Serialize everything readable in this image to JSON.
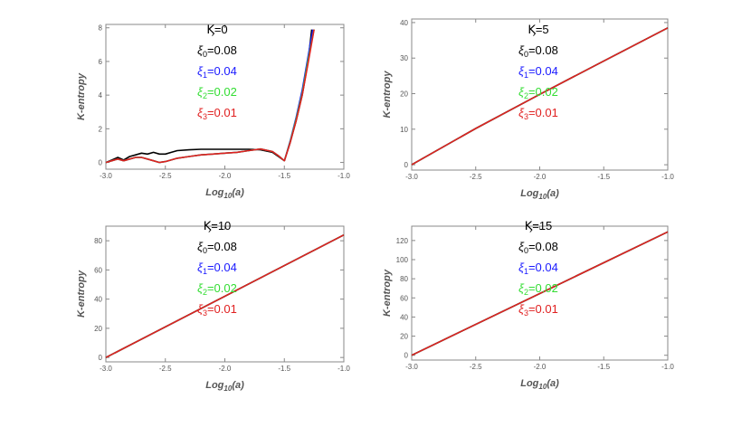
{
  "chart_data": [
    {
      "type": "line",
      "kappa_label": "Ϗ=0",
      "xlabel": "Log10(a)",
      "ylabel": "K-entropy",
      "xlim": [
        -3.0,
        -1.0
      ],
      "ylim": [
        -0.4,
        8.2
      ],
      "xticks": [
        -3.0,
        -2.5,
        -2.0,
        -1.5,
        -1.0
      ],
      "xtick_labels": [
        "-3.0",
        "-2.5",
        "-2.0",
        "-1.5",
        "-1.0"
      ],
      "yticks": [
        0,
        2,
        4,
        6,
        8
      ],
      "ytick_labels": [
        "0",
        "2",
        "4",
        "6",
        "8"
      ],
      "annotations": [
        {
          "sym": "ξ",
          "sub": "0",
          "val": "=0.08",
          "color": "#000000"
        },
        {
          "sym": "ξ",
          "sub": "1",
          "val": "=0.04",
          "color": "#1a1aff"
        },
        {
          "sym": "ξ",
          "sub": "2",
          "val": "=0.02",
          "color": "#33dd33"
        },
        {
          "sym": "ξ",
          "sub": "3",
          "val": "=0.01",
          "color": "#e02020"
        }
      ],
      "series": [
        {
          "name": "ξ0=0.08",
          "color": "#000000",
          "x": [
            -3.0,
            -2.95,
            -2.9,
            -2.85,
            -2.8,
            -2.75,
            -2.7,
            -2.65,
            -2.6,
            -2.55,
            -2.5,
            -2.45,
            -2.4,
            -2.3,
            -2.2,
            -2.1,
            -2.0,
            -1.9,
            -1.8,
            -1.7,
            -1.6,
            -1.55,
            -1.5,
            -1.45,
            -1.4,
            -1.35,
            -1.3,
            -1.27
          ],
          "y": [
            0.0,
            0.15,
            0.3,
            0.15,
            0.35,
            0.45,
            0.55,
            0.5,
            0.6,
            0.5,
            0.5,
            0.6,
            0.7,
            0.75,
            0.78,
            0.78,
            0.78,
            0.78,
            0.78,
            0.75,
            0.6,
            0.35,
            0.1,
            1.2,
            2.5,
            4.0,
            6.0,
            7.9
          ]
        },
        {
          "name": "ξ1=0.04",
          "color": "#1a1aff",
          "x": [
            -3.0,
            -2.95,
            -2.9,
            -2.85,
            -2.8,
            -2.75,
            -2.7,
            -2.65,
            -2.6,
            -2.55,
            -2.5,
            -2.4,
            -2.3,
            -2.2,
            -2.1,
            -2.0,
            -1.9,
            -1.8,
            -1.7,
            -1.6,
            -1.55,
            -1.5,
            -1.45,
            -1.4,
            -1.35,
            -1.3,
            -1.26
          ],
          "y": [
            0.0,
            0.1,
            0.2,
            0.1,
            0.2,
            0.3,
            0.3,
            0.2,
            0.1,
            0.0,
            0.05,
            0.25,
            0.35,
            0.45,
            0.5,
            0.55,
            0.6,
            0.7,
            0.8,
            0.65,
            0.4,
            0.1,
            1.3,
            2.7,
            4.3,
            6.3,
            7.9
          ]
        },
        {
          "name": "ξ2=0.02",
          "color": "#33dd33",
          "x": [
            -3.0,
            -2.95,
            -2.9,
            -2.85,
            -2.8,
            -2.75,
            -2.7,
            -2.65,
            -2.6,
            -2.55,
            -2.5,
            -2.4,
            -2.3,
            -2.2,
            -2.1,
            -2.0,
            -1.9,
            -1.8,
            -1.7,
            -1.6,
            -1.55,
            -1.5,
            -1.45,
            -1.4,
            -1.35,
            -1.3,
            -1.25
          ],
          "y": [
            0.0,
            0.1,
            0.2,
            0.1,
            0.2,
            0.3,
            0.3,
            0.2,
            0.1,
            0.0,
            0.05,
            0.25,
            0.35,
            0.45,
            0.5,
            0.55,
            0.6,
            0.7,
            0.8,
            0.65,
            0.4,
            0.1,
            1.25,
            2.6,
            4.1,
            6.1,
            7.9
          ]
        },
        {
          "name": "ξ3=0.01",
          "color": "#e02020",
          "x": [
            -3.0,
            -2.95,
            -2.9,
            -2.85,
            -2.8,
            -2.75,
            -2.7,
            -2.65,
            -2.6,
            -2.55,
            -2.5,
            -2.4,
            -2.3,
            -2.2,
            -2.1,
            -2.0,
            -1.9,
            -1.8,
            -1.7,
            -1.6,
            -1.55,
            -1.5,
            -1.45,
            -1.4,
            -1.35,
            -1.3,
            -1.25
          ],
          "y": [
            0.0,
            0.1,
            0.2,
            0.1,
            0.2,
            0.3,
            0.3,
            0.2,
            0.1,
            0.0,
            0.05,
            0.25,
            0.35,
            0.45,
            0.5,
            0.55,
            0.6,
            0.7,
            0.8,
            0.65,
            0.4,
            0.1,
            1.2,
            2.5,
            4.0,
            5.9,
            7.9
          ]
        }
      ]
    },
    {
      "type": "line",
      "kappa_label": "Ϗ=5",
      "xlabel": "Log10(a)",
      "ylabel": "K-entropy",
      "xlim": [
        -3.0,
        -1.0
      ],
      "ylim": [
        -1.5,
        41
      ],
      "xticks": [
        -3.0,
        -2.5,
        -2.0,
        -1.5,
        -1.0
      ],
      "xtick_labels": [
        "-3.0",
        "-2.5",
        "-2.0",
        "-1.5",
        "-1.0"
      ],
      "yticks": [
        0,
        10,
        20,
        30,
        40
      ],
      "ytick_labels": [
        "0",
        "10",
        "20",
        "30",
        "40"
      ],
      "annotations": [
        {
          "sym": "ξ",
          "sub": "0",
          "val": "=0.08",
          "color": "#000000"
        },
        {
          "sym": "ξ",
          "sub": "1",
          "val": "=0.04",
          "color": "#1a1aff"
        },
        {
          "sym": "ξ",
          "sub": "2",
          "val": "=0.02",
          "color": "#33dd33"
        },
        {
          "sym": "ξ",
          "sub": "3",
          "val": "=0.01",
          "color": "#e02020"
        }
      ],
      "series": [
        {
          "name": "ξ0=0.08",
          "color": "#000000",
          "x": [
            -3.0,
            -2.5,
            -2.0,
            -1.5,
            -1.0
          ],
          "y": [
            0.0,
            10.2,
            19.8,
            29.2,
            38.5
          ]
        },
        {
          "name": "ξ1=0.04",
          "color": "#1a1aff",
          "x": [
            -3.0,
            -2.5,
            -2.0,
            -1.5,
            -1.0
          ],
          "y": [
            0.0,
            10.2,
            19.8,
            29.2,
            38.5
          ]
        },
        {
          "name": "ξ2=0.02",
          "color": "#33dd33",
          "x": [
            -3.0,
            -2.5,
            -2.0,
            -1.5,
            -1.0
          ],
          "y": [
            0.0,
            10.2,
            19.8,
            29.2,
            38.5
          ]
        },
        {
          "name": "ξ3=0.01",
          "color": "#e02020",
          "x": [
            -3.0,
            -2.5,
            -2.0,
            -1.5,
            -1.0
          ],
          "y": [
            0.0,
            10.2,
            19.8,
            29.2,
            38.5
          ]
        }
      ]
    },
    {
      "type": "line",
      "kappa_label": "Ϗ=10",
      "xlabel": "Log10(a)",
      "ylabel": "K-entropy",
      "xlim": [
        -3.0,
        -1.0
      ],
      "ylim": [
        -3,
        90
      ],
      "xticks": [
        -3.0,
        -2.5,
        -2.0,
        -1.5,
        -1.0
      ],
      "xtick_labels": [
        "-3.0",
        "-2.5",
        "-2.0",
        "-1.5",
        "-1.0"
      ],
      "yticks": [
        0,
        20,
        40,
        60,
        80
      ],
      "ytick_labels": [
        "0",
        "20",
        "40",
        "60",
        "80"
      ],
      "annotations": [
        {
          "sym": "ξ",
          "sub": "0",
          "val": "=0.08",
          "color": "#000000"
        },
        {
          "sym": "ξ",
          "sub": "1",
          "val": "=0.04",
          "color": "#1a1aff"
        },
        {
          "sym": "ξ",
          "sub": "2",
          "val": "=0.02",
          "color": "#33dd33"
        },
        {
          "sym": "ξ",
          "sub": "3",
          "val": "=0.01",
          "color": "#e02020"
        }
      ],
      "series": [
        {
          "name": "ξ0=0.08",
          "color": "#000000",
          "x": [
            -3.0,
            -1.0
          ],
          "y": [
            0.0,
            84.0
          ]
        },
        {
          "name": "ξ1=0.04",
          "color": "#1a1aff",
          "x": [
            -3.0,
            -1.0
          ],
          "y": [
            0.0,
            84.0
          ]
        },
        {
          "name": "ξ2=0.02",
          "color": "#33dd33",
          "x": [
            -3.0,
            -1.0
          ],
          "y": [
            0.0,
            84.0
          ]
        },
        {
          "name": "ξ3=0.01",
          "color": "#e02020",
          "x": [
            -3.0,
            -1.0
          ],
          "y": [
            0.0,
            84.0
          ]
        }
      ]
    },
    {
      "type": "line",
      "kappa_label": "Ϗ=15",
      "xlabel": "Log10(a)",
      "ylabel": "K-entropy",
      "xlim": [
        -3.0,
        -1.0
      ],
      "ylim": [
        -5,
        135
      ],
      "xticks": [
        -3.0,
        -2.5,
        -2.0,
        -1.5,
        -1.0
      ],
      "xtick_labels": [
        "-3.0",
        "-2.5",
        "-2.0",
        "-1.5",
        "-1.0"
      ],
      "yticks": [
        0,
        20,
        40,
        60,
        80,
        100,
        120
      ],
      "ytick_labels": [
        "0",
        "20",
        "40",
        "60",
        "80",
        "100",
        "120"
      ],
      "annotations": [
        {
          "sym": "ξ",
          "sub": "0",
          "val": "=0.08",
          "color": "#000000"
        },
        {
          "sym": "ξ",
          "sub": "1",
          "val": "=0.04",
          "color": "#1a1aff"
        },
        {
          "sym": "ξ",
          "sub": "2",
          "val": "=0.02",
          "color": "#33dd33"
        },
        {
          "sym": "ξ",
          "sub": "3",
          "val": "=0.01",
          "color": "#e02020"
        }
      ],
      "series": [
        {
          "name": "ξ0=0.08",
          "color": "#000000",
          "x": [
            -3.0,
            -1.0
          ],
          "y": [
            0.0,
            129.0
          ]
        },
        {
          "name": "ξ1=0.04",
          "color": "#1a1aff",
          "x": [
            -3.0,
            -1.0
          ],
          "y": [
            0.0,
            129.0
          ]
        },
        {
          "name": "ξ2=0.02",
          "color": "#33dd33",
          "x": [
            -3.0,
            -1.0
          ],
          "y": [
            0.0,
            129.0
          ]
        },
        {
          "name": "ξ3=0.01",
          "color": "#e02020",
          "x": [
            -3.0,
            -1.0
          ],
          "y": [
            0.0,
            129.0
          ]
        }
      ]
    }
  ]
}
